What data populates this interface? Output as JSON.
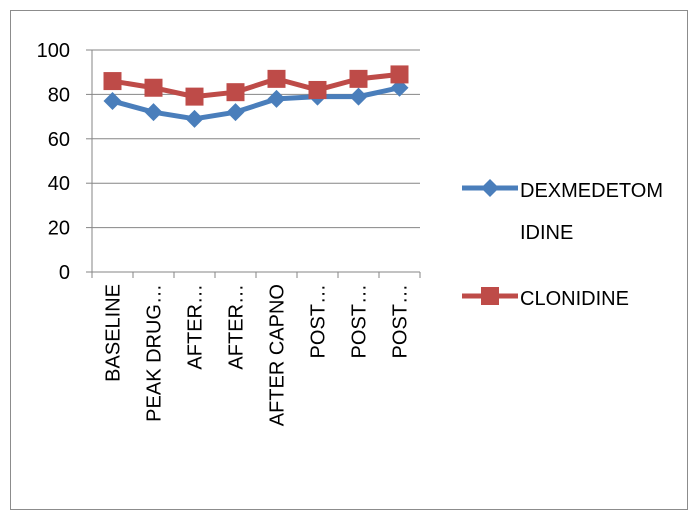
{
  "chart_data": {
    "type": "line",
    "title": "",
    "xlabel": "",
    "ylabel": "",
    "categories": [
      "BASELINE",
      "PEAK DRUG…",
      "AFTER…",
      "AFTER…",
      "AFTER CAPNO",
      "POST…",
      "POST…",
      "POST…"
    ],
    "series": [
      {
        "name": "DEXMEDETOMIDINE",
        "legend_lines": [
          "DEXMEDETOM",
          "IDINE"
        ],
        "color": "#4a7ebb",
        "marker": "diamond",
        "values": [
          77,
          72,
          69,
          72,
          78,
          79,
          79,
          83
        ]
      },
      {
        "name": "CLONIDINE",
        "legend_lines": [
          "CLONIDINE"
        ],
        "color": "#be4b48",
        "marker": "square",
        "values": [
          86,
          83,
          79,
          81,
          87,
          82,
          87,
          89
        ]
      }
    ],
    "ylim": [
      0,
      100
    ],
    "yticks": [
      0,
      20,
      40,
      60,
      80,
      100
    ],
    "grid": true,
    "legend_position": "right"
  }
}
